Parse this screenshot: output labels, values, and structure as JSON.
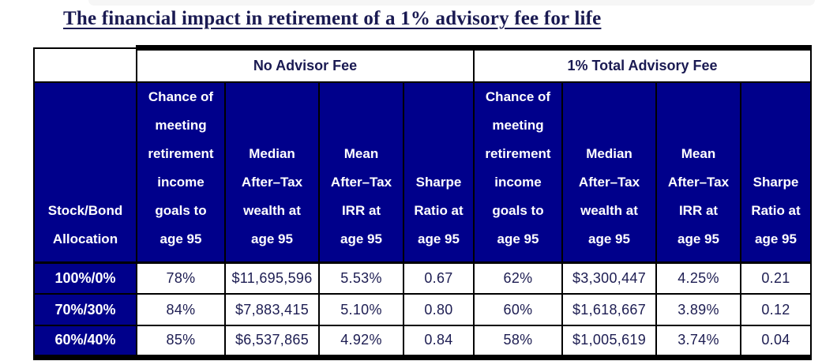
{
  "title": {
    "text": "The financial impact in retirement of a 1% advisory fee for life"
  },
  "colors": {
    "navy_fill": "#00008B",
    "header_text": "#ffffff",
    "dark_navy_text": "#1a1a52",
    "border": "#000000",
    "background": "#ffffff"
  },
  "table": {
    "row_header": "Stock/Bond\nAllocation",
    "groups": [
      {
        "label": "No Advisor Fee",
        "columns": [
          "Chance of\nmeeting\nretirement\nincome\ngoals to\nage 95",
          "Median\nAfter–Tax\nwealth at\nage 95",
          "Mean\nAfter–Tax\nIRR at\nage 95",
          "Sharpe\nRatio at\nage 95"
        ]
      },
      {
        "label": "1% Total Advisory Fee",
        "columns": [
          "Chance of\nmeeting\nretirement\nincome\ngoals to\nage 95",
          "Median\nAfter–Tax\nwealth at\nage 95",
          "Mean\nAfter–Tax\nIRR at\nage 95",
          "Sharpe\nRatio at\nage 95"
        ]
      }
    ],
    "rows": [
      {
        "allocation": "100%/0%",
        "no_fee": [
          "78%",
          "$11,695,596",
          "5.53%",
          "0.67"
        ],
        "fee": [
          "62%",
          "$3,300,447",
          "4.25%",
          "0.21"
        ]
      },
      {
        "allocation": "70%/30%",
        "no_fee": [
          "84%",
          "$7,883,415",
          "5.10%",
          "0.80"
        ],
        "fee": [
          "60%",
          "$1,618,667",
          "3.89%",
          "0.12"
        ]
      },
      {
        "allocation": "60%/40%",
        "no_fee": [
          "85%",
          "$6,537,865",
          "4.92%",
          "0.84"
        ],
        "fee": [
          "58%",
          "$1,005,619",
          "3.74%",
          "0.04"
        ]
      }
    ]
  },
  "chart_data": {
    "type": "table",
    "title": "The financial impact in retirement of a 1% advisory fee for life",
    "row_label_header": "Stock/Bond Allocation",
    "column_groups": [
      {
        "label": "No Advisor Fee",
        "span": 4
      },
      {
        "label": "1% Total Advisory Fee",
        "span": 4
      }
    ],
    "columns": [
      "Chance of meeting retirement income goals to age 95",
      "Median After–Tax wealth at age 95",
      "Mean After–Tax IRR at age 95",
      "Sharpe Ratio at age 95",
      "Chance of meeting retirement income goals to age 95",
      "Median After–Tax wealth at age 95",
      "Mean After–Tax IRR at age 95",
      "Sharpe Ratio at age 95"
    ],
    "rows": [
      {
        "allocation": "100%/0%",
        "values": [
          "78%",
          "$11,695,596",
          "5.53%",
          "0.67",
          "62%",
          "$3,300,447",
          "4.25%",
          "0.21"
        ]
      },
      {
        "allocation": "70%/30%",
        "values": [
          "84%",
          "$7,883,415",
          "5.10%",
          "0.80",
          "60%",
          "$1,618,667",
          "3.89%",
          "0.12"
        ]
      },
      {
        "allocation": "60%/40%",
        "values": [
          "85%",
          "$6,537,865",
          "4.92%",
          "0.84",
          "58%",
          "$1,005,619",
          "3.74%",
          "0.04"
        ]
      }
    ]
  }
}
